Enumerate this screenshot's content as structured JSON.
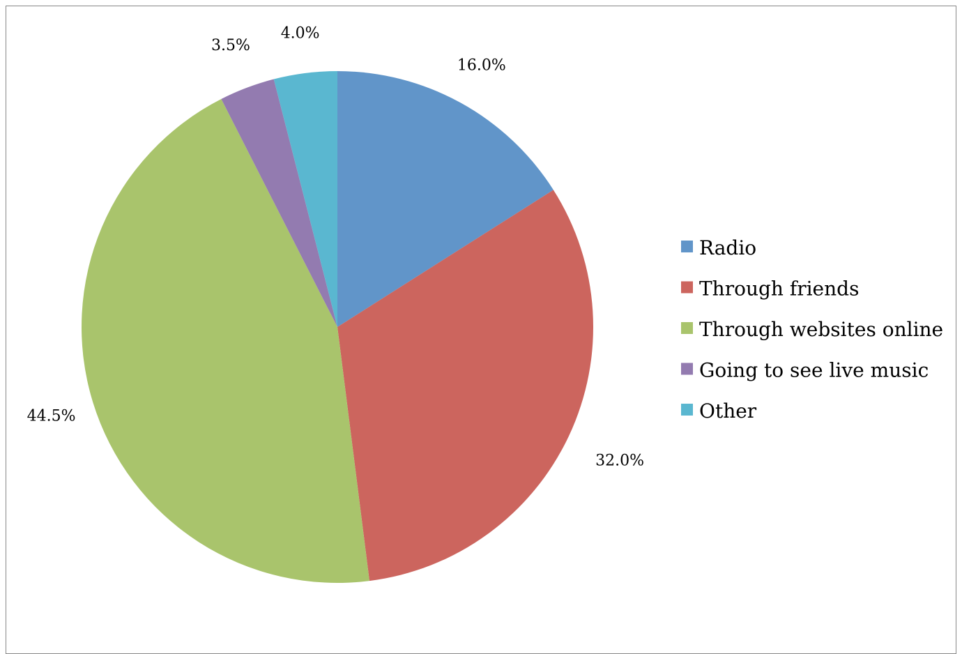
{
  "chart_data": {
    "type": "pie",
    "series": [
      {
        "categories": [
          "Radio",
          "Through friends",
          "Through websites online",
          "Going to see live music",
          "Other"
        ],
        "values": [
          16.0,
          32.0,
          44.5,
          3.5,
          4.0
        ],
        "value_labels": [
          "16.0%",
          "32.0%",
          "44.5%",
          "3.5%",
          "4.0%"
        ]
      }
    ],
    "colors": [
      "#6195C9",
      "#CC655E",
      "#A9C46C",
      "#937BB0",
      "#5AB7D0"
    ],
    "legend": {
      "placement": "right",
      "entries": [
        "Radio",
        "Through friends",
        "Through websites online",
        "Going to see live music",
        "Other"
      ]
    },
    "start_angle": "12 o'clock",
    "direction": "clockwise"
  }
}
